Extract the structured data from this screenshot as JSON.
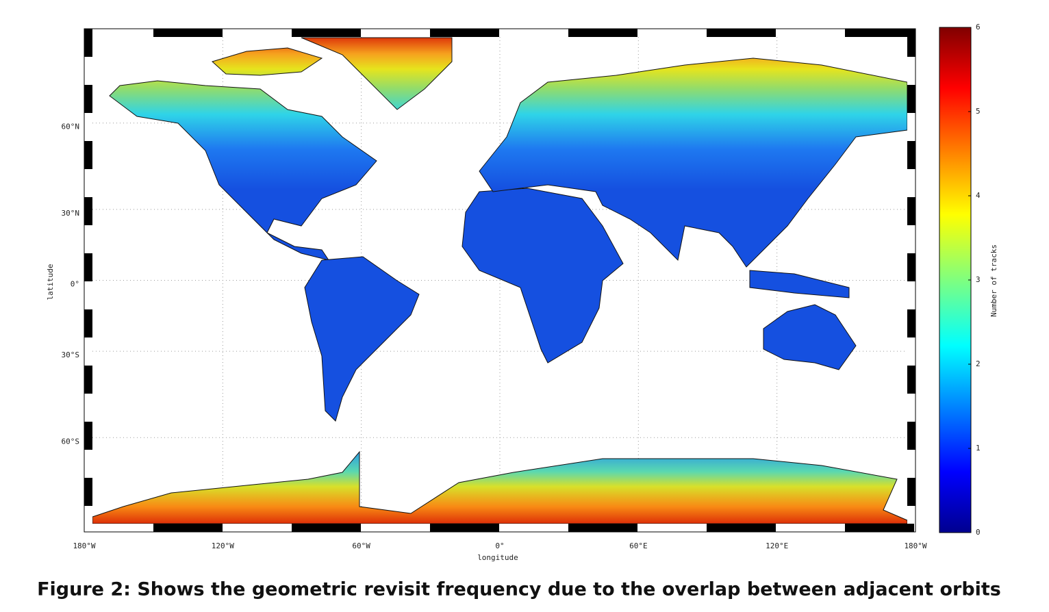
{
  "chart_data": {
    "type": "map",
    "projection": "miller",
    "xlabel": "longitude",
    "ylabel": "latitude",
    "xlim": [
      -180,
      180
    ],
    "ylim": [
      -82,
      82
    ],
    "xticks": [
      {
        "value": -180,
        "label": "180°W"
      },
      {
        "value": -120,
        "label": "120°W"
      },
      {
        "value": -60,
        "label": "60°W"
      },
      {
        "value": 0,
        "label": "0°"
      },
      {
        "value": 60,
        "label": "60°E"
      },
      {
        "value": 120,
        "label": "120°E"
      },
      {
        "value": 180,
        "label": "180°W"
      }
    ],
    "yticks": [
      {
        "value": 60,
        "label": "60°N"
      },
      {
        "value": 30,
        "label": "30°N"
      },
      {
        "value": 0,
        "label": "0°"
      },
      {
        "value": -30,
        "label": "30°S"
      },
      {
        "value": -60,
        "label": "60°S"
      }
    ],
    "grid": true,
    "colorbar": {
      "label": "Number of tracks",
      "lim": [
        0,
        6
      ],
      "ticks": [
        0,
        1,
        2,
        3,
        4,
        5,
        6
      ]
    },
    "caption": "Figure 2: Shows the geometric revisit frequency due to the overlap between adjacent orbits"
  }
}
